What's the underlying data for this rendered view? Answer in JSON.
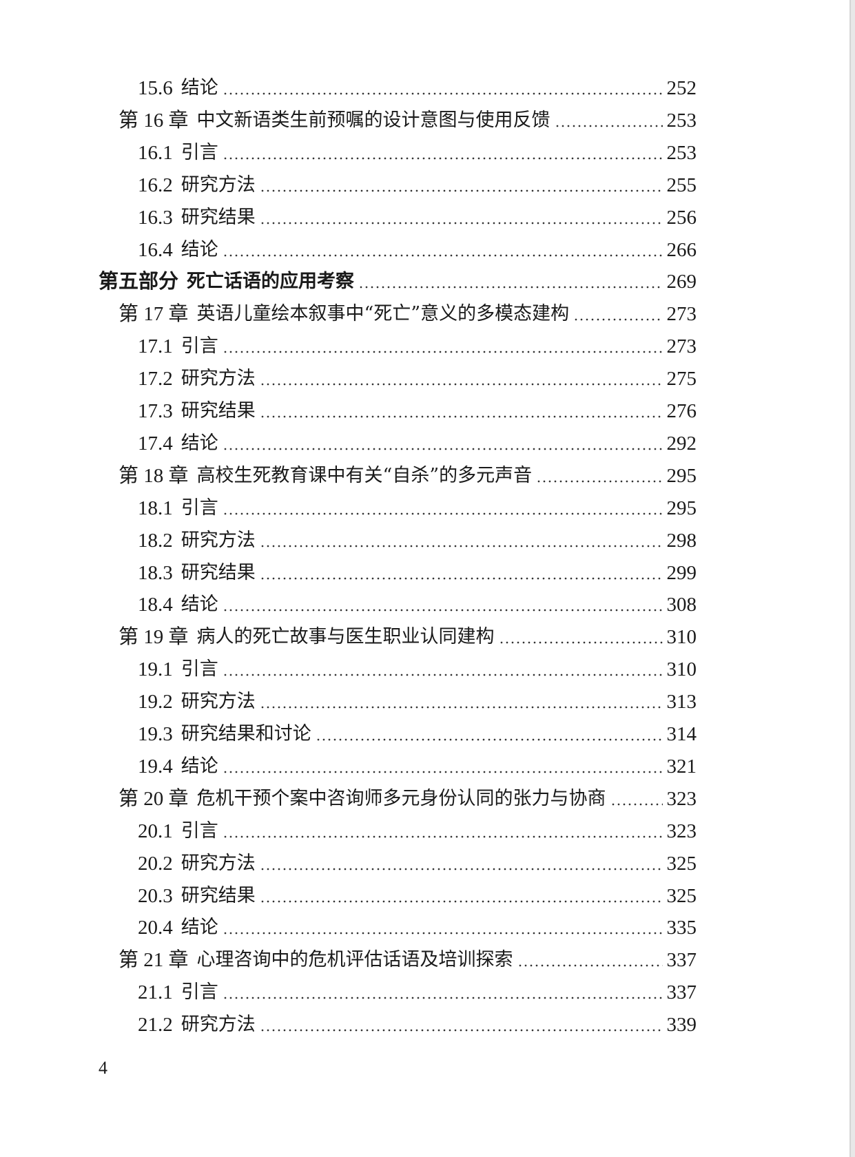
{
  "toc": [
    {
      "level": "section",
      "num": "15.6",
      "title": "结论",
      "page": "252"
    },
    {
      "level": "chapter",
      "num": "第 16 章",
      "title": "中文新语类生前预嘱的设计意图与使用反馈",
      "page": "253"
    },
    {
      "level": "section",
      "num": "16.1",
      "title": "引言",
      "page": "253"
    },
    {
      "level": "section",
      "num": "16.2",
      "title": "研究方法",
      "page": "255"
    },
    {
      "level": "section",
      "num": "16.3",
      "title": "研究结果",
      "page": "256"
    },
    {
      "level": "section",
      "num": "16.4",
      "title": "结论",
      "page": "266"
    },
    {
      "level": "part",
      "num": "第五部分",
      "title": "死亡话语的应用考察",
      "page": "269"
    },
    {
      "level": "chapter",
      "num": "第 17 章",
      "title": "英语儿童绘本叙事中“死亡”意义的多模态建构",
      "page": "273"
    },
    {
      "level": "section",
      "num": "17.1",
      "title": "引言",
      "page": "273"
    },
    {
      "level": "section",
      "num": "17.2",
      "title": "研究方法",
      "page": "275"
    },
    {
      "level": "section",
      "num": "17.3",
      "title": "研究结果",
      "page": "276"
    },
    {
      "level": "section",
      "num": "17.4",
      "title": "结论",
      "page": "292"
    },
    {
      "level": "chapter",
      "num": "第 18 章",
      "title": "高校生死教育课中有关“自杀”的多元声音",
      "page": "295"
    },
    {
      "level": "section",
      "num": "18.1",
      "title": "引言",
      "page": "295"
    },
    {
      "level": "section",
      "num": "18.2",
      "title": "研究方法",
      "page": "298"
    },
    {
      "level": "section",
      "num": "18.3",
      "title": "研究结果",
      "page": "299"
    },
    {
      "level": "section",
      "num": "18.4",
      "title": "结论",
      "page": "308"
    },
    {
      "level": "chapter",
      "num": "第 19 章",
      "title": "病人的死亡故事与医生职业认同建构",
      "page": "310"
    },
    {
      "level": "section",
      "num": "19.1",
      "title": "引言",
      "page": "310"
    },
    {
      "level": "section",
      "num": "19.2",
      "title": "研究方法",
      "page": "313"
    },
    {
      "level": "section",
      "num": "19.3",
      "title": "研究结果和讨论",
      "page": "314"
    },
    {
      "level": "section",
      "num": "19.4",
      "title": "结论",
      "page": "321"
    },
    {
      "level": "chapter",
      "num": "第 20 章",
      "title": "危机干预个案中咨询师多元身份认同的张力与协商",
      "page": "323"
    },
    {
      "level": "section",
      "num": "20.1",
      "title": "引言",
      "page": "323"
    },
    {
      "level": "section",
      "num": "20.2",
      "title": "研究方法",
      "page": "325"
    },
    {
      "level": "section",
      "num": "20.3",
      "title": "研究结果",
      "page": "325"
    },
    {
      "level": "section",
      "num": "20.4",
      "title": "结论",
      "page": "335"
    },
    {
      "level": "chapter",
      "num": "第 21 章",
      "title": "心理咨询中的危机评估话语及培训探索",
      "page": "337"
    },
    {
      "level": "section",
      "num": "21.1",
      "title": "引言",
      "page": "337"
    },
    {
      "level": "section",
      "num": "21.2",
      "title": "研究方法",
      "page": "339"
    }
  ],
  "page_number": "4"
}
